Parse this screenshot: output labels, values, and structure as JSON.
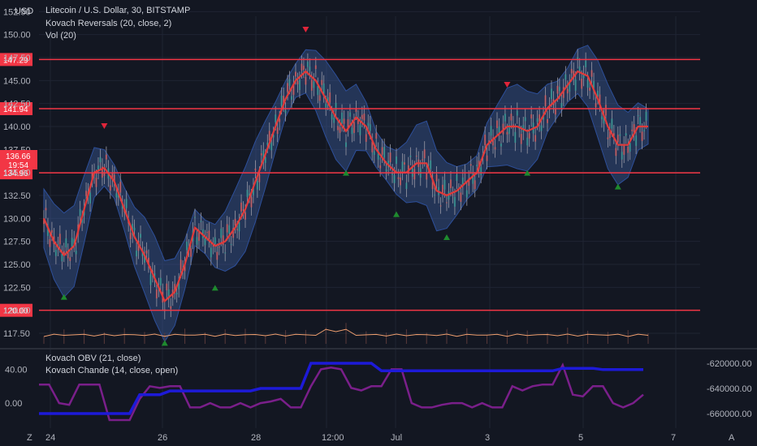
{
  "header": {
    "currency": "USD",
    "title": "Litecoin / U.S. Dollar, 30, BITSTAMP",
    "indicators": [
      "Kovach Reversals (20, close, 2)",
      "Vol (20)"
    ]
  },
  "sub_header": {
    "indicators": [
      "Kovach OBV (21, close)",
      "Kovach Chande (14, close, open)"
    ]
  },
  "price_tag": {
    "price": "136.66",
    "countdown": "19:54"
  },
  "colors": {
    "background": "#131722",
    "grid": "#1f2433",
    "resistance": "#f23645",
    "ma": "#e03a3a",
    "band": "#3a5a9a",
    "up_signal": "#1e8a2e",
    "down_signal": "#e0253a",
    "obv": "#1d1ad8",
    "chande": "#7a1f8a",
    "volume": "#f0a070"
  },
  "footer": {
    "left_icon": "Z",
    "right_icon": "A"
  },
  "chart_data": [
    {
      "type": "candlestick",
      "title": "Litecoin / U.S. Dollar, 30, BITSTAMP",
      "ylim": [
        116,
        152
      ],
      "y_ticks": [
        "117.50",
        "120.00",
        "122.50",
        "125.00",
        "127.50",
        "130.00",
        "132.50",
        "135.00",
        "137.50",
        "140.00",
        "142.50",
        "145.00",
        "147.50",
        "150.00",
        "152.50"
      ],
      "x_ticks": [
        "24",
        "26",
        "28",
        "12:00",
        "Jul",
        "3",
        "5",
        "7"
      ],
      "horizontal_levels": [
        {
          "label": "147.29",
          "value": 147.29
        },
        {
          "label": "141.94",
          "value": 141.94
        },
        {
          "label": "134.96",
          "value": 134.96
        },
        {
          "label": "120.00",
          "value": 120.0
        }
      ],
      "series": [
        {
          "name": "Kovach Reversals (20, close, 2)",
          "values": [
            130,
            127.5,
            126,
            127,
            131,
            135,
            135.5,
            134,
            131,
            128,
            126,
            123.5,
            121,
            122,
            125,
            129,
            128,
            127,
            127.5,
            129,
            131,
            134,
            137,
            140,
            143,
            145,
            146,
            145,
            143,
            141,
            139.5,
            141,
            140,
            137.5,
            136,
            135,
            135,
            136,
            136,
            133,
            132.5,
            133,
            134,
            135,
            138,
            139,
            140,
            140,
            139.5,
            140,
            142,
            143,
            144.5,
            146,
            145.5,
            143,
            140,
            138,
            138,
            140,
            140
          ]
        }
      ]
    },
    {
      "type": "line",
      "title": "Kovach OBV (21, close)",
      "ylim": [
        -660000,
        -620000
      ],
      "y_ticks": [
        "-620000.00",
        "-640000.00",
        "-660000.00"
      ],
      "series": [
        {
          "name": "Kovach OBV (21, close)",
          "values": [
            -660000,
            -660000,
            -660000,
            -660000,
            -660000,
            -660000,
            -660000,
            -660000,
            -660000,
            -660000,
            -645000,
            -645000,
            -645000,
            -642000,
            -642000,
            -642000,
            -642000,
            -642000,
            -642000,
            -642000,
            -642000,
            -642000,
            -640000,
            -640000,
            -640000,
            -640000,
            -640000,
            -620000,
            -620000,
            -620000,
            -620000,
            -620000,
            -620000,
            -620000,
            -626000,
            -626000,
            -626000,
            -626000,
            -626000,
            -626000,
            -626000,
            -626000,
            -626000,
            -626000,
            -626000,
            -626000,
            -626000,
            -626000,
            -626000,
            -626000,
            -626000,
            -626000,
            -624000,
            -624000,
            -624000,
            -624000,
            -625000,
            -625000,
            -625000,
            -625000,
            -625000
          ]
        }
      ]
    },
    {
      "type": "line",
      "title": "Kovach Chande (14, close, open)",
      "ylim": [
        -20,
        50
      ],
      "y_ticks": [
        "40.00",
        "0.00"
      ],
      "series": [
        {
          "name": "Kovach Chande (14, close, open)",
          "values": [
            22,
            22,
            0,
            -2,
            22,
            22,
            22,
            -20,
            -20,
            -20,
            5,
            20,
            18,
            20,
            20,
            -5,
            -5,
            0,
            -5,
            -5,
            0,
            -5,
            0,
            2,
            5,
            -5,
            -5,
            20,
            40,
            42,
            40,
            18,
            15,
            20,
            20,
            40,
            40,
            0,
            -5,
            -5,
            -2,
            0,
            0,
            -5,
            0,
            -5,
            -5,
            20,
            15,
            20,
            22,
            22,
            45,
            10,
            8,
            20,
            20,
            0,
            -5,
            0,
            10
          ]
        }
      ]
    }
  ]
}
